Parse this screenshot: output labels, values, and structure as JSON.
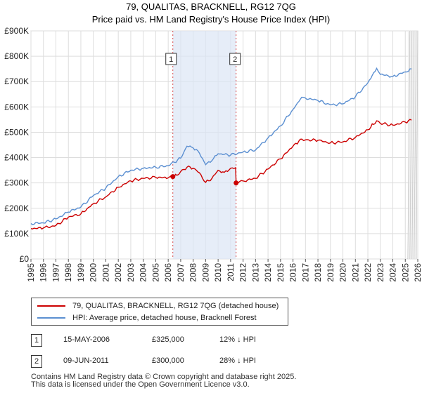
{
  "chart_data": {
    "type": "line",
    "title": "79, QUALITAS, BRACKNELL, RG12 7QG",
    "subtitle": "Price paid vs. HM Land Registry's House Price Index (HPI)",
    "ylim": [
      0,
      900000
    ],
    "xlim": [
      1995,
      2026
    ],
    "y_ticks": [
      0,
      100000,
      200000,
      300000,
      400000,
      500000,
      600000,
      700000,
      800000,
      900000
    ],
    "y_tick_labels": [
      "£0",
      "£100K",
      "£200K",
      "£300K",
      "£400K",
      "£500K",
      "£600K",
      "£700K",
      "£800K",
      "£900K"
    ],
    "x_ticks": [
      1995,
      1996,
      1997,
      1998,
      1999,
      2000,
      2001,
      2002,
      2003,
      2004,
      2005,
      2006,
      2007,
      2008,
      2009,
      2010,
      2011,
      2012,
      2013,
      2014,
      2015,
      2016,
      2017,
      2018,
      2019,
      2020,
      2021,
      2022,
      2023,
      2024,
      2025,
      2026
    ],
    "shaded_span": [
      2006.37,
      2011.44
    ],
    "forecast_start": 2025.2,
    "series": [
      {
        "name": "79, QUALITAS, BRACKNELL, RG12 7QG (detached house)",
        "color": "#cc0000",
        "x": [
          1995,
          1996,
          1997,
          1998,
          1999,
          2000,
          2001,
          2002,
          2003,
          2004,
          2005,
          2006,
          2006.37,
          2006.7,
          2007,
          2007.5,
          2008,
          2008.5,
          2009,
          2009.5,
          2010,
          2010.5,
          2011,
          2011.4,
          2011.44,
          2011.7,
          2012,
          2013,
          2014,
          2015,
          2016,
          2016.7,
          2017,
          2018,
          2019,
          2020,
          2021,
          2022,
          2022.7,
          2023,
          2024,
          2025,
          2025.5
        ],
        "y": [
          120000,
          122000,
          132000,
          165000,
          178000,
          218000,
          245000,
          283000,
          308000,
          318000,
          322000,
          320000,
          325000,
          330000,
          345000,
          362000,
          358000,
          340000,
          302000,
          318000,
          350000,
          342000,
          358000,
          360000,
          300000,
          305000,
          308000,
          318000,
          355000,
          395000,
          445000,
          473000,
          470000,
          468000,
          458000,
          462000,
          480000,
          510000,
          545000,
          535000,
          528000,
          540000,
          548000
        ]
      },
      {
        "name": "HPI: Average price, detached house, Bracknell Forest",
        "color": "#5b8fd1",
        "x": [
          1995,
          1996,
          1997,
          1998,
          1999,
          2000,
          2001,
          2002,
          2003,
          2004,
          2005,
          2006,
          2007,
          2007.5,
          2008,
          2008.5,
          2009,
          2009.5,
          2010,
          2011,
          2012,
          2013,
          2014,
          2015,
          2016,
          2016.7,
          2017,
          2018,
          2019,
          2020,
          2021,
          2022,
          2022.7,
          2023,
          2024,
          2025,
          2025.5
        ],
        "y": [
          140000,
          142000,
          158000,
          185000,
          205000,
          250000,
          280000,
          325000,
          350000,
          358000,
          362000,
          368000,
          398000,
          445000,
          438000,
          418000,
          372000,
          388000,
          415000,
          410000,
          422000,
          430000,
          478000,
          525000,
          590000,
          638000,
          635000,
          625000,
          608000,
          612000,
          640000,
          695000,
          752000,
          728000,
          720000,
          738000,
          750000
        ]
      }
    ],
    "sales": [
      {
        "label": "1",
        "x": 2006.37,
        "y": 325000,
        "date": "15-MAY-2006",
        "price": "£325,000",
        "hpi": "12% ↓ HPI"
      },
      {
        "label": "2",
        "x": 2011.44,
        "y": 300000,
        "date": "09-JUN-2011",
        "price": "£300,000",
        "hpi": "28% ↓ HPI"
      }
    ]
  },
  "legend": {
    "items": [
      {
        "label": "79, QUALITAS, BRACKNELL, RG12 7QG (detached house)",
        "color": "#cc0000"
      },
      {
        "label": "HPI: Average price, detached house, Bracknell Forest",
        "color": "#5b8fd1"
      }
    ]
  },
  "footer": {
    "line1": "Contains HM Land Registry data © Crown copyright and database right 2025.",
    "line2": "This data is licensed under the Open Government Licence v3.0."
  }
}
